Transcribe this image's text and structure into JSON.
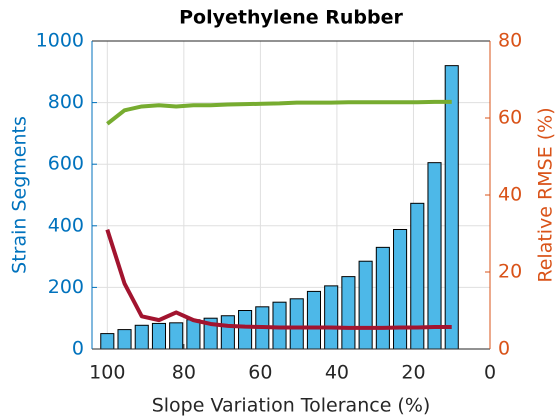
{
  "chart_data": {
    "type": "bar",
    "title": "Polyethylene Rubber",
    "xlabel": "Slope Variation Tolerance (%)",
    "ylabel": "Strain Segments",
    "y2label": "Relative RMSE (%)",
    "x": [
      100,
      95.5,
      91,
      86.5,
      82,
      77.5,
      73,
      68.5,
      64,
      59.5,
      55,
      50.5,
      46,
      41.5,
      37,
      32.5,
      28,
      23.5,
      19,
      14.5,
      10
    ],
    "xlim": [
      104,
      0
    ],
    "xticks": [
      100,
      80,
      60,
      40,
      20,
      0
    ],
    "ylim": [
      0,
      1000
    ],
    "yticks": [
      0,
      200,
      400,
      600,
      800,
      1000
    ],
    "y2lim": [
      0,
      80
    ],
    "y2ticks": [
      0,
      20,
      40,
      60,
      80
    ],
    "ycolor": "#0072bd",
    "y2color": "#d95319",
    "grid": true,
    "series": [
      {
        "type": "bar",
        "color": "#4db8e8",
        "edgecolor": "#000000",
        "values": [
          50,
          63,
          77,
          83,
          85,
          95,
          100,
          108,
          125,
          137,
          152,
          163,
          187,
          205,
          235,
          285,
          330,
          388,
          473,
          605,
          920
        ]
      },
      {
        "type": "line",
        "axis": "y2",
        "color": "#77ac30",
        "values": [
          58.5,
          62,
          63,
          63.3,
          63,
          63.3,
          63.3,
          63.5,
          63.6,
          63.7,
          63.8,
          64,
          64,
          64,
          64.1,
          64.1,
          64.1,
          64.1,
          64.1,
          64.2,
          64.2
        ]
      },
      {
        "type": "line",
        "axis": "y2",
        "color": "#a2142f",
        "values": [
          31,
          17,
          8.5,
          7.5,
          9.5,
          7.5,
          6.5,
          6,
          5.8,
          5.7,
          5.6,
          5.6,
          5.6,
          5.6,
          5.5,
          5.5,
          5.5,
          5.6,
          5.6,
          5.7,
          5.7
        ]
      }
    ]
  }
}
